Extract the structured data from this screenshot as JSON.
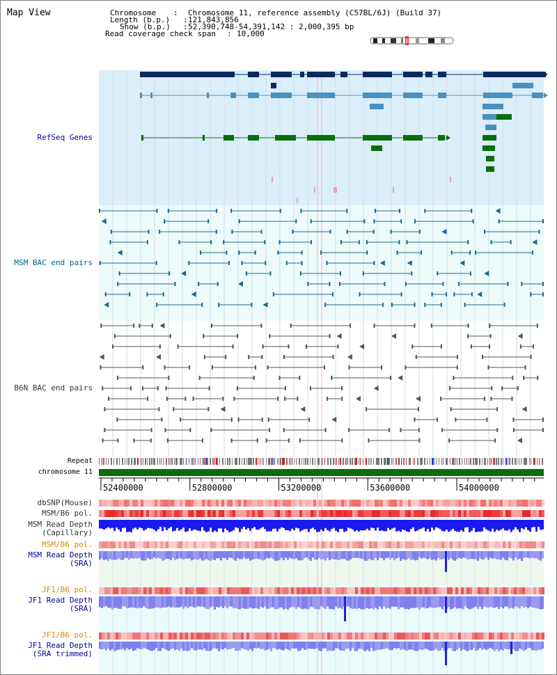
{
  "view": {
    "title": "Map View"
  },
  "header": {
    "chromosome_label": "Chromosome",
    "chromosome_value": "Chromosome 11, reference assembly (C57BL/6J) (Build 37)",
    "length_label": "Length (b.p.)",
    "length_value": "121,843,856",
    "show_label": "Show (b.p.)",
    "show_value": "52,390,748-54,391,142 : 2,000,395 bp",
    "coverage_label": "Read coverage check span",
    "coverage_value": "10,000"
  },
  "tracks": {
    "refseq": "RefSeq Genes",
    "msm_bac": "MSM BAC end pairs",
    "b6n_bac": "B6N BAC end pairs",
    "repeat": "Repeat",
    "chromosome": "chromosome 11",
    "dbsnp": "dbSNP(Mouse)",
    "msm_b6_pol": "MSM/B6 pol.",
    "msm_depth_cap_1": "MSM Read Depth",
    "msm_depth_cap_2": "(Capillary)",
    "msm_b6_pol_2": "MSM/B6 pol.",
    "msm_depth_sra_1": "MSM Read Depth",
    "msm_depth_sra_2": "(SRA)",
    "jf1_b6_pol": "JF1/B6 pol.",
    "jf1_depth_sra_1": "JF1 Read Depth",
    "jf1_depth_sra_2": "(SRA)",
    "jf1_b6_pol_2": "JF1/B6 pol.",
    "jf1_depth_trim_1": "JF1 Read Depth",
    "jf1_depth_trim_2": "(SRA trimmed)"
  },
  "axis": {
    "ticks": [
      "52400000",
      "52800000",
      "53200000",
      "53600000",
      "54000000"
    ],
    "tick_values": [
      52400000,
      52800000,
      53200000,
      53600000,
      54000000
    ],
    "range": [
      52390748,
      54391142
    ]
  },
  "colors": {
    "refseq_bg": "#dbeffa",
    "bac_bg": "#eefbfb",
    "navy": "#0a2a5e",
    "steel": "#4a90c0",
    "green": "#0a6e0a",
    "teal": "#1a6a8a",
    "gray": "#555555",
    "chrom": "#0a6e0a",
    "depth_blue": "#1a1aee",
    "depth_violet": "#7777ee",
    "pol_red": "#ee4444",
    "pol_pink": "#f7b0b0",
    "lower_bg": "#eef8ee",
    "jf1_bg": "#e9fbfb"
  }
}
